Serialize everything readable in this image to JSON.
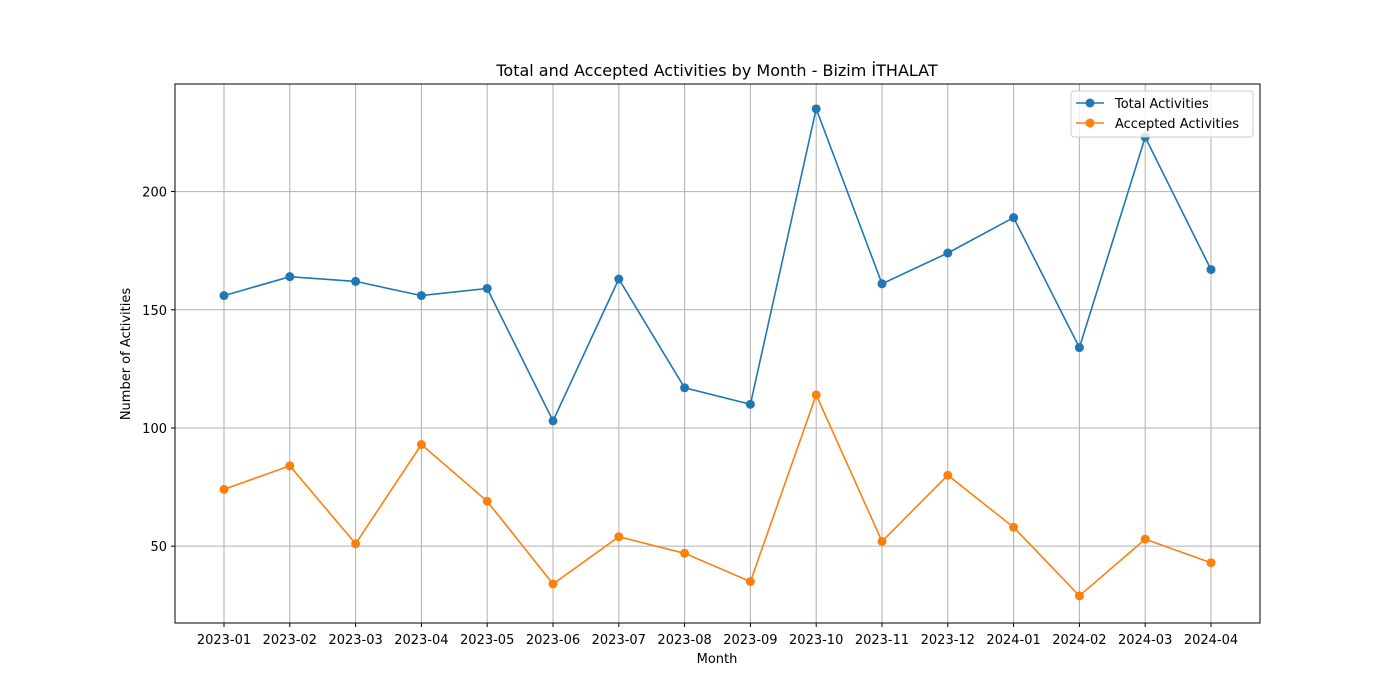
{
  "chart_data": {
    "type": "line",
    "title": "Total and Accepted Activities by Month - Bizim İTHALAT",
    "xlabel": "Month",
    "ylabel": "Number of Activities",
    "categories": [
      "2023-01",
      "2023-02",
      "2023-03",
      "2023-04",
      "2023-05",
      "2023-06",
      "2023-07",
      "2023-08",
      "2023-09",
      "2023-10",
      "2023-11",
      "2023-12",
      "2024-01",
      "2024-02",
      "2024-03",
      "2024-04"
    ],
    "series": [
      {
        "name": "Total Activities",
        "color": "#1f77b4",
        "values": [
          156,
          164,
          162,
          156,
          159,
          103,
          163,
          117,
          110,
          235,
          161,
          174,
          189,
          134,
          223,
          167
        ]
      },
      {
        "name": "Accepted Activities",
        "color": "#ff7f0e",
        "values": [
          74,
          84,
          51,
          93,
          69,
          34,
          54,
          47,
          35,
          114,
          52,
          80,
          58,
          29,
          53,
          43
        ]
      }
    ],
    "ylim": [
      17.5,
      245.5
    ],
    "yticks": [
      50,
      100,
      150,
      200
    ],
    "grid": true,
    "legend_position": "top-right",
    "marker": "circle"
  }
}
